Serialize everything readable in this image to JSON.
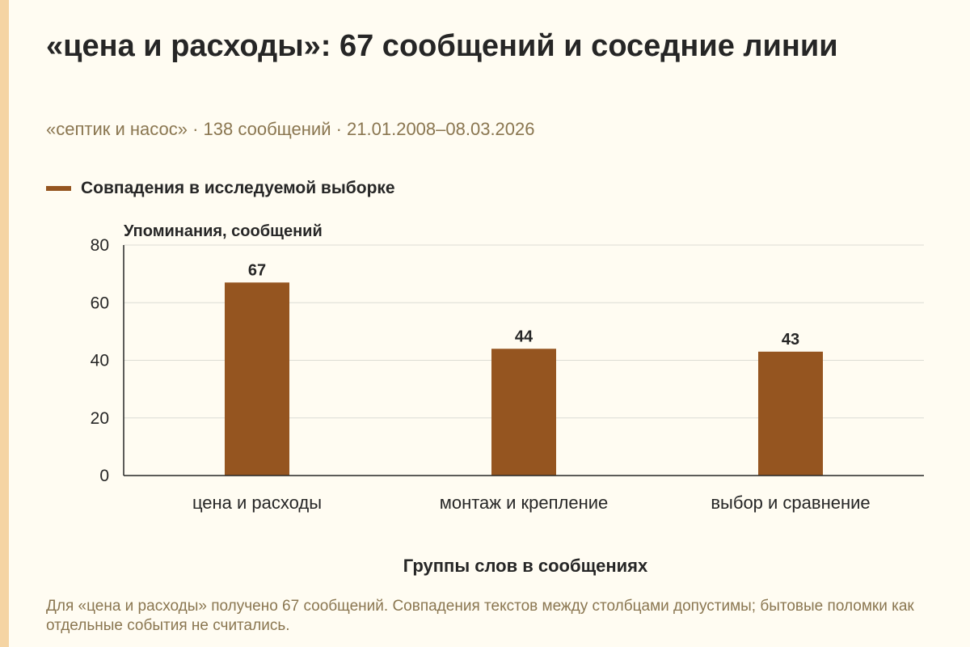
{
  "title": "«цена и расходы»: 67 сообщений и соседние линии",
  "subtitle": "«септик и насос» · 138 сообщений · 21.01.2008–08.03.2026",
  "caption": "Для «цена и расходы» получено 67 сообщений. Совпадения текстов между столбцами допустимы; бытовые поломки как отдельные события не считались.",
  "colors": {
    "bar": "#955520",
    "background": "#fffcf2",
    "accent_stripe": "#f5d4a3",
    "secondary_text": "#8a7650"
  },
  "chart_data": {
    "type": "bar",
    "categories": [
      "цена и расходы",
      "монтаж и крепление",
      "выбор и сравнение"
    ],
    "series": [
      {
        "name": "Совпадения в исследуемой выборке",
        "values": [
          67,
          44,
          43
        ]
      }
    ],
    "xlabel": "Группы слов в сообщениях",
    "ylabel": "Упоминания, сообщений",
    "ylim": [
      0,
      80
    ],
    "yticks": [
      0,
      20,
      40,
      60,
      80
    ],
    "grid": true,
    "legend": "top-left",
    "data_labels": true
  }
}
